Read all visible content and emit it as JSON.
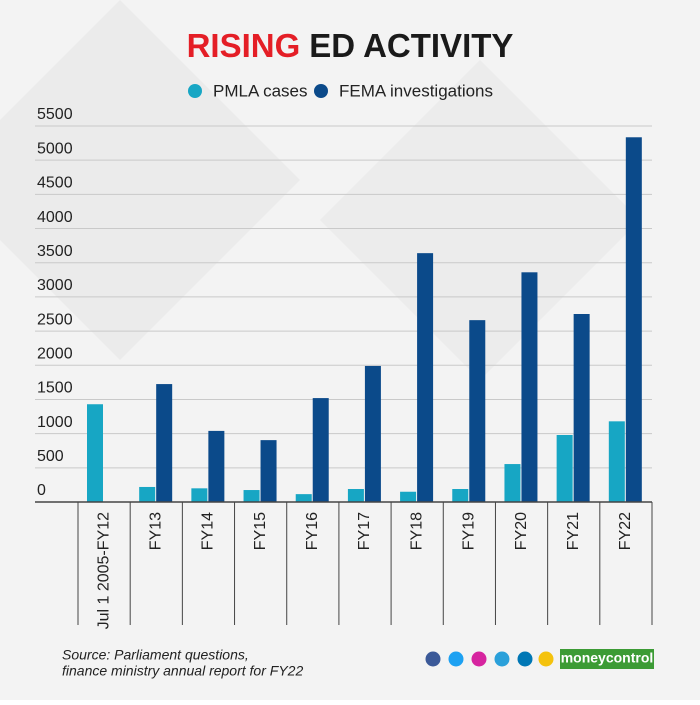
{
  "chart_data": {
    "type": "bar",
    "title_highlight": "RISING",
    "title": "ED ACTIVITY",
    "categories": [
      "Jul 1 2005-FY12",
      "FY13",
      "FY14",
      "FY15",
      "FY16",
      "FY17",
      "FY18",
      "FY19",
      "FY20",
      "FY21",
      "FY22"
    ],
    "series": [
      {
        "name": "PMLA cases",
        "color": "#17a6c4",
        "values": [
          1430,
          220,
          200,
          175,
          115,
          190,
          150,
          190,
          555,
          980,
          1180
        ]
      },
      {
        "name": "FEMA investigations",
        "color": "#0b4a8a",
        "values": [
          null,
          1725,
          1040,
          905,
          1520,
          1990,
          3640,
          2660,
          3360,
          2750,
          5335
        ]
      }
    ],
    "ylim": [
      0,
      5500
    ],
    "yticks": [
      0,
      500,
      1000,
      1500,
      2000,
      2500,
      3000,
      3500,
      4000,
      4500,
      5000,
      5500
    ],
    "grid": true,
    "source": [
      "Source: Parliament questions,",
      "finance ministry annual report for FY22"
    ],
    "brand": "moneycontrol"
  }
}
